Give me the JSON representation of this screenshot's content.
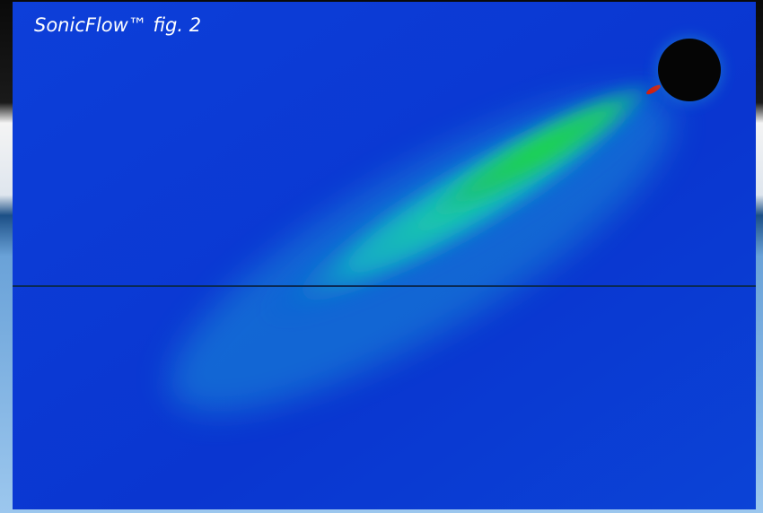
{
  "caption": "SonicFlow™ fig. 2"
}
